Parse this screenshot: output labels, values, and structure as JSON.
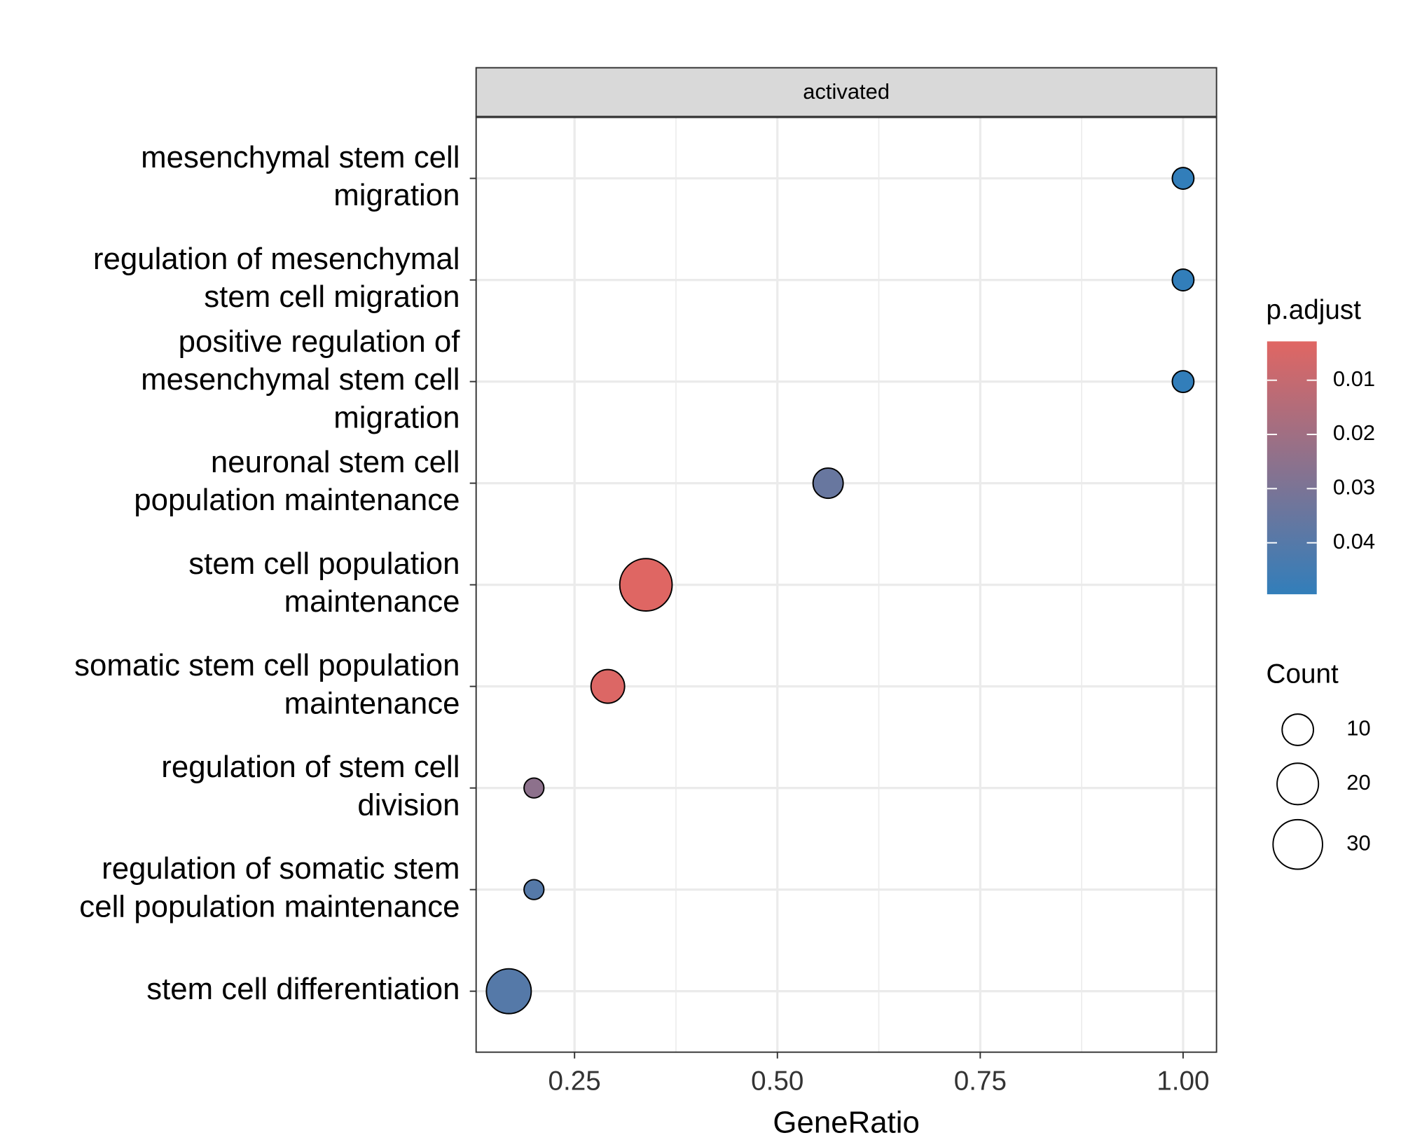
{
  "chart_data": {
    "type": "dotplot",
    "facet": "activated",
    "x_label": "GeneRatio",
    "categories": [
      [
        "mesenchymal stem cell",
        "migration"
      ],
      [
        "regulation of mesenchymal",
        "stem cell migration"
      ],
      [
        "positive regulation of",
        "mesenchymal stem cell",
        "migration"
      ],
      [
        "neuronal stem cell",
        "population maintenance"
      ],
      [
        "stem cell population",
        "maintenance"
      ],
      [
        "somatic stem cell population",
        "maintenance"
      ],
      [
        "regulation of stem cell",
        "division"
      ],
      [
        "regulation of somatic stem",
        "cell population maintenance"
      ],
      [
        "stem cell differentiation"
      ]
    ],
    "x": [
      1.0,
      1.0,
      1.0,
      0.5625,
      0.338,
      0.291,
      0.2,
      0.2,
      0.169
    ],
    "p_adjust": [
      0.0495,
      0.0495,
      0.0495,
      0.035,
      0.003,
      0.004,
      0.025,
      0.04,
      0.04
    ],
    "count": [
      3,
      3,
      3,
      9,
      34,
      12,
      2,
      2,
      24
    ],
    "xlim": [
      0.1287,
      1.0412
    ],
    "xticks": [
      {
        "value": 0.25,
        "label": "0.25"
      },
      {
        "value": 0.5,
        "label": "0.50"
      },
      {
        "value": 0.75,
        "label": "0.75"
      },
      {
        "value": 1.0,
        "label": "1.00"
      }
    ],
    "xminor": [
      0.375,
      0.625,
      0.875
    ],
    "grid": true,
    "color_legend": {
      "title": "p.adjust",
      "lim": [
        0.00283,
        0.0495
      ],
      "ticks": [
        0.01,
        0.02,
        0.03,
        0.04
      ],
      "low_color": "#e06663",
      "high_color": "#327eba"
    },
    "size_legend": {
      "title": "Count",
      "values": [
        10,
        20,
        30
      ]
    }
  }
}
